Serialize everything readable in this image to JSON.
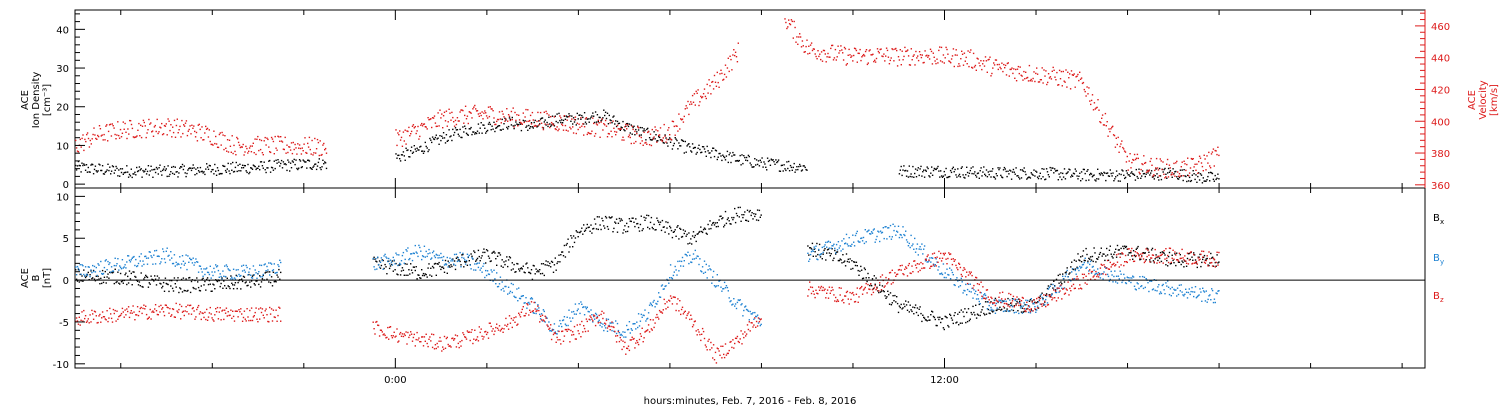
{
  "chart_data": [
    {
      "type": "scatter",
      "panel": "top",
      "ylabel_left": [
        "ACE",
        "Ion Density",
        "[cm⁻³]"
      ],
      "ylabel_right": [
        "ACE",
        "Velocity",
        "[km/s]"
      ],
      "ylim_left": [
        -1,
        45
      ],
      "yticks_left": [
        0,
        10,
        20,
        30,
        40
      ],
      "ylim_right": [
        358,
        470
      ],
      "yticks_right": [
        360,
        380,
        400,
        420,
        440,
        460
      ],
      "right_axis_color": "#dd1a1a",
      "grid": false,
      "series": [
        {
          "name": "Ion Density",
          "axis": "left",
          "color": "#000000",
          "x": [
            -7,
            -6,
            -5,
            -4,
            -3,
            -2.5,
            -1.5,
            -0.5,
            0,
            0.5,
            1,
            1.5,
            2,
            2.5,
            3,
            3.5,
            4,
            4.5,
            5,
            5.5,
            6,
            6.5,
            7,
            7.5,
            8,
            8.5,
            9,
            10,
            11,
            12,
            13,
            14,
            15,
            16,
            17,
            17.5,
            18
          ],
          "y": [
            4.5,
            3.5,
            3.5,
            4,
            4.5,
            5,
            5.5,
            null,
            7,
            9,
            12,
            14,
            15,
            16,
            15,
            17,
            17,
            18,
            15,
            13,
            11,
            9,
            8,
            6.5,
            5.5,
            5,
            4.5,
            null,
            3.5,
            3.5,
            3,
            3,
            2.5,
            2.5,
            3,
            2,
            1.5
          ]
        },
        {
          "name": "Velocity",
          "axis": "right",
          "color": "#dd1a1a",
          "x": [
            -7,
            -6.5,
            -6,
            -5.5,
            -5,
            -4.5,
            -4,
            -3.5,
            -3,
            -2.5,
            -1.5,
            -0.5,
            0,
            0.5,
            1,
            1.5,
            2,
            2.5,
            3,
            3.5,
            4,
            4.5,
            5,
            5.5,
            6,
            6.5,
            7,
            7.5,
            8,
            8.5,
            9,
            9.5,
            10,
            10.5,
            11,
            11.5,
            12,
            12.5,
            13,
            13.5,
            14,
            14.5,
            15,
            15.5,
            16,
            16.5,
            17,
            17.5,
            18
          ],
          "y": [
            385,
            392,
            395,
            396,
            397,
            395,
            391,
            385,
            385,
            385,
            384,
            null,
            389,
            395,
            402,
            404,
            405,
            403,
            402,
            400,
            398,
            396,
            393,
            390,
            394,
            412,
            425,
            445,
            null,
            465,
            446,
            443,
            441,
            442,
            441,
            442,
            441,
            440,
            435,
            432,
            430,
            428,
            425,
            400,
            375,
            372,
            370,
            372,
            380
          ]
        }
      ]
    },
    {
      "type": "scatter",
      "panel": "bottom",
      "ylabel_left": [
        "ACE",
        "B",
        "[nT]"
      ],
      "ylim": [
        -10.5,
        11
      ],
      "yticks": [
        -10,
        -5,
        0,
        5,
        10
      ],
      "zero_line": true,
      "xlabel": "hours:minutes, Feb.  7, 2016 - Feb.  8, 2016",
      "xlim": [
        -7,
        22.5
      ],
      "xticks": [
        0,
        12
      ],
      "xtick_labels": [
        "0:00",
        "12:00"
      ],
      "grid": false,
      "series": [
        {
          "name": "Bx",
          "label_main": "B",
          "label_sub": "x",
          "color": "#000000",
          "x": [
            -7,
            -6,
            -5,
            -4,
            -3,
            -2.5,
            -1.5,
            -0.5,
            0,
            0.5,
            1,
            1.5,
            2,
            2.5,
            3,
            3.5,
            4,
            4.5,
            5,
            5.5,
            6,
            6.5,
            7,
            7.5,
            8,
            8.5,
            9,
            10,
            11,
            12,
            13,
            14,
            15,
            16,
            17,
            18
          ],
          "y": [
            0.5,
            0.5,
            -0.5,
            -0.5,
            0,
            0.5,
            null,
            2,
            1.5,
            1,
            1.5,
            2.5,
            3,
            2,
            1,
            2,
            6,
            7,
            6.5,
            7,
            6,
            5,
            7,
            8,
            8,
            null,
            4,
            2,
            -3,
            -5,
            -3,
            -3,
            3,
            3.5,
            2.5,
            2.5
          ]
        },
        {
          "name": "By",
          "label_main": "B",
          "label_sub": "y",
          "color": "#1e82d2",
          "x": [
            -7,
            -6,
            -5,
            -4,
            -3,
            -2.5,
            -1.5,
            -0.5,
            0,
            0.5,
            1,
            1.5,
            2,
            2.5,
            3,
            3.5,
            4,
            4.5,
            5,
            5.5,
            6,
            6.5,
            7,
            7.5,
            8,
            8.5,
            9,
            10,
            11,
            12,
            13,
            14,
            15,
            16,
            17,
            18
          ],
          "y": [
            1,
            2,
            3,
            1,
            1,
            2,
            null,
            2,
            2.5,
            3.5,
            2.5,
            2.5,
            1,
            -1,
            -3,
            -6,
            -3,
            -5,
            -6,
            -4,
            1,
            3,
            0,
            -3,
            -5,
            null,
            3,
            5,
            6,
            1,
            -3,
            -3,
            2,
            0,
            -1,
            -2
          ]
        },
        {
          "name": "Bz",
          "label_main": "B",
          "label_sub": "z",
          "color": "#dd1a1a",
          "x": [
            -7,
            -6,
            -5,
            -4,
            -3,
            -2.5,
            -1.5,
            -0.5,
            0,
            0.5,
            1,
            1.5,
            2,
            2.5,
            3,
            3.5,
            4,
            4.5,
            5,
            5.5,
            6,
            6.5,
            7,
            7.5,
            8,
            8.5,
            9,
            10,
            11,
            12,
            13,
            14,
            15,
            16,
            17,
            18
          ],
          "y": [
            -4.5,
            -4,
            -3.5,
            -4,
            -4,
            -4,
            null,
            -5.5,
            -6.5,
            -7,
            -7.5,
            -7,
            -6,
            -5,
            -3,
            -7,
            -6,
            -4,
            -8,
            -6,
            -2,
            -5,
            -9,
            -7,
            -4,
            null,
            -1,
            -2,
            1,
            3,
            -2,
            -3,
            0,
            3,
            3,
            2.5
          ]
        }
      ]
    }
  ]
}
